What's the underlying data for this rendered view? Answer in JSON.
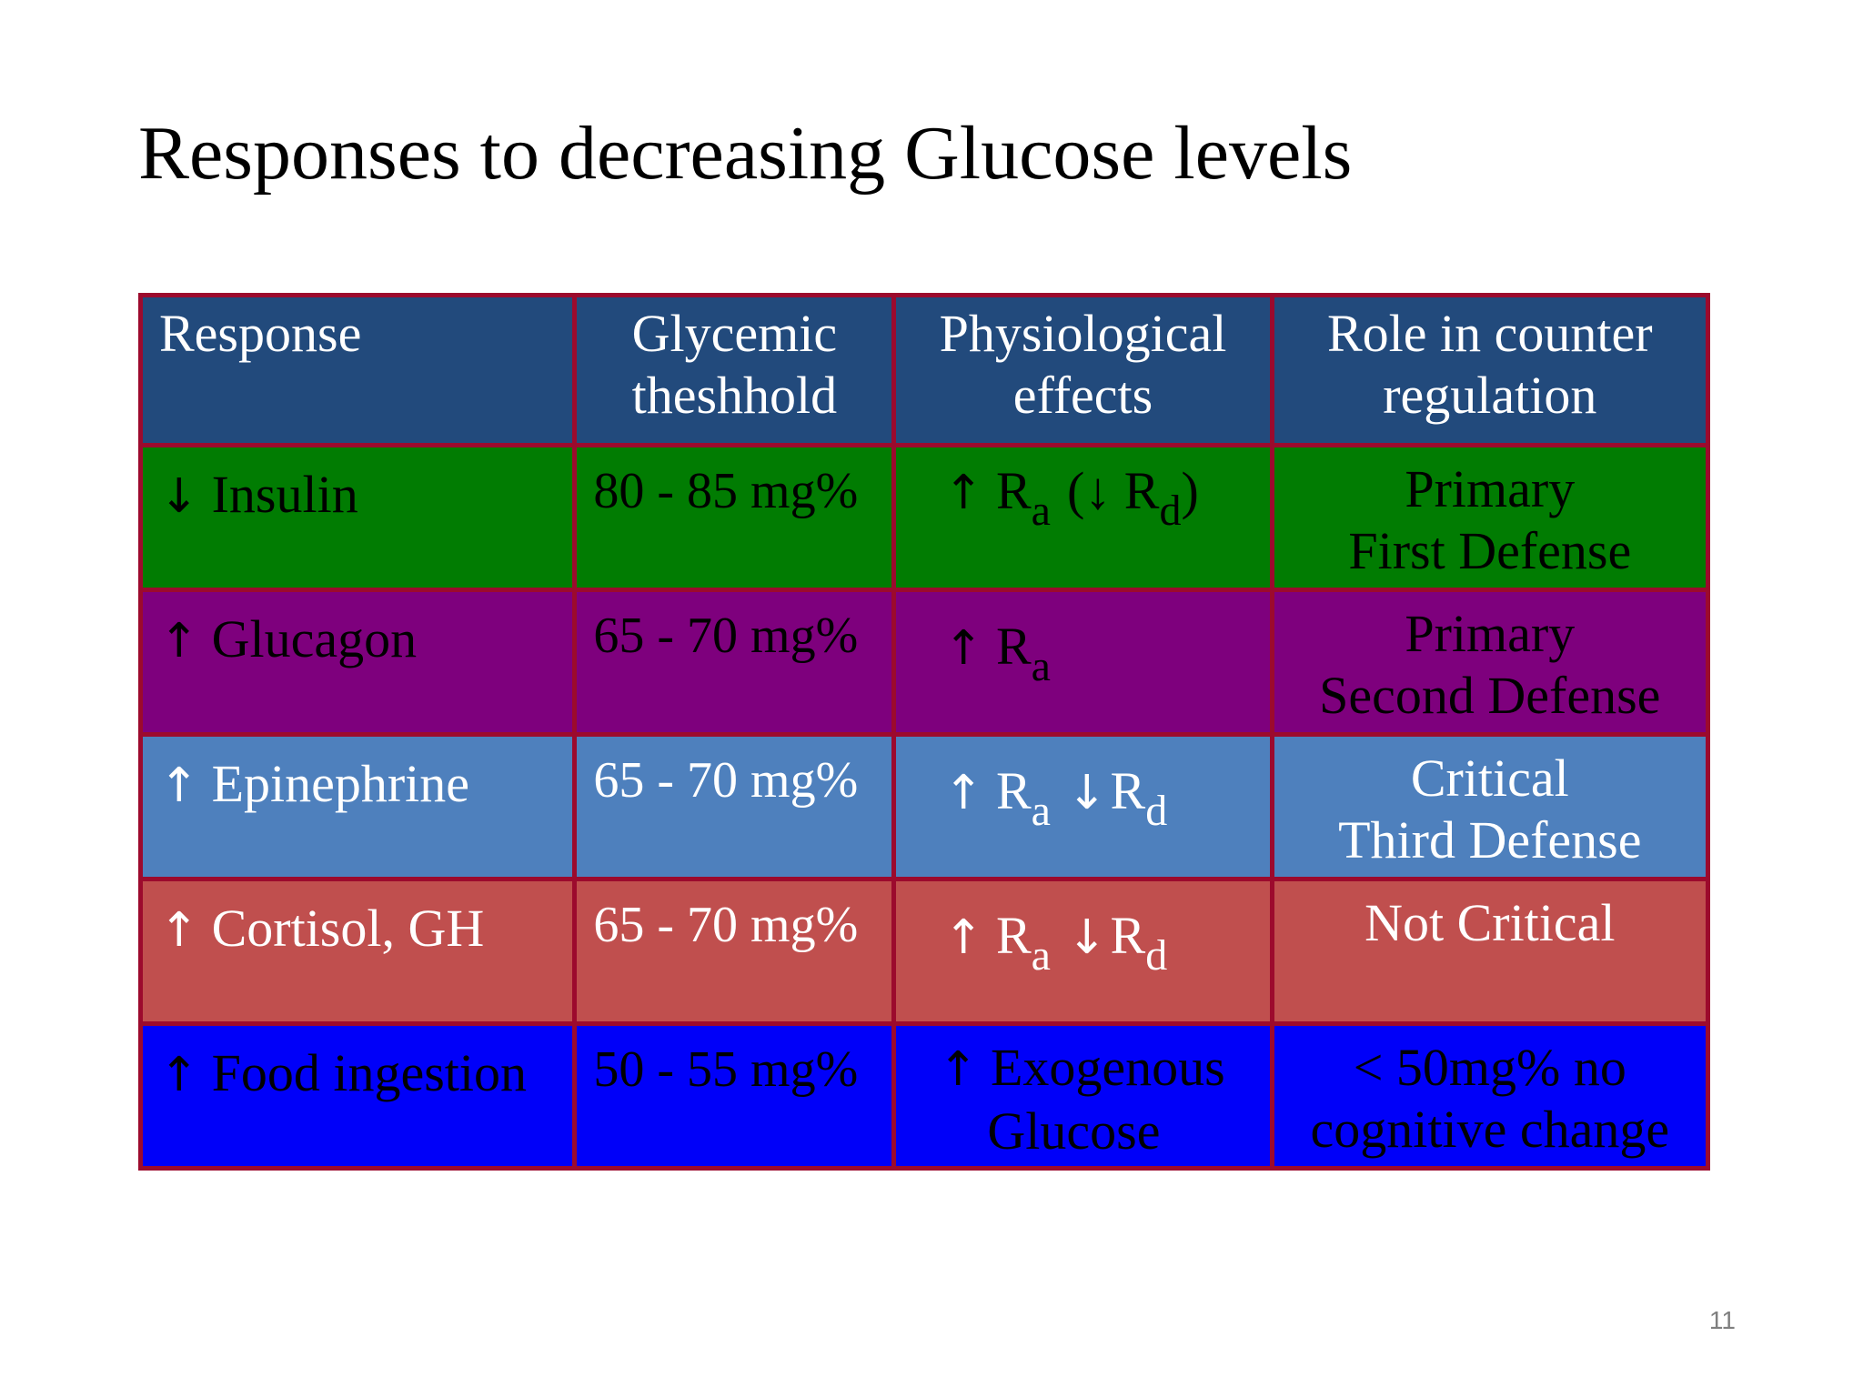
{
  "title": "Responses to decreasing Glucose levels",
  "page_number": "11",
  "colors": {
    "border": "#9c0a2d",
    "header_bg": "#224a7c",
    "insulin_bg": "#017c02",
    "glucagon_bg": "#7e007d",
    "epinephrine_bg": "#4e80bd",
    "cortisol_bg": "#c04f4e",
    "food_bg": "#0000f9"
  },
  "table": {
    "headers": {
      "response": "Response",
      "threshold": [
        "Glycemic",
        "theshhold"
      ],
      "effects": [
        "Physiological",
        "effects"
      ],
      "role": [
        "Role in counter",
        "regulation"
      ]
    },
    "rows": [
      {
        "key": "insulin",
        "arrow": "↓",
        "response": "Insulin",
        "threshold": "80 - 85 mg%",
        "effect": {
          "arrow": "↑",
          "r1": "R",
          "s1": "a",
          "paren_open": "(↓",
          "r2": "R",
          "s2": "d",
          "paren_close": ")"
        },
        "role": [
          "Primary",
          "First Defense"
        ]
      },
      {
        "key": "glucagon",
        "arrow": "↑",
        "response": "Glucagon",
        "threshold": "65 - 70 mg%",
        "effect": {
          "arrow": "↑",
          "r1": "R",
          "s1": "a"
        },
        "role": [
          "Primary",
          "Second Defense"
        ]
      },
      {
        "key": "epinephrine",
        "arrow": "↑",
        "response": "Epinephrine",
        "threshold": "65 - 70 mg%",
        "effect": {
          "arrow": "↑",
          "r1": "R",
          "s1": "a",
          "arrow2": "↓",
          "r2": "R",
          "s2": "d"
        },
        "role": [
          "Critical",
          "Third Defense"
        ]
      },
      {
        "key": "cortisol",
        "arrow": "↑",
        "response": "Cortisol, GH",
        "threshold": "65 - 70 mg%",
        "effect": {
          "arrow": "↑",
          "r1": "R",
          "s1": "a",
          "arrow2": "↓",
          "r2": "R",
          "s2": "d"
        },
        "role": [
          "Not Critical"
        ]
      },
      {
        "key": "food",
        "arrow": "↑",
        "response": "Food ingestion",
        "threshold": "50 - 55 mg%",
        "effect": {
          "arrow": "↑",
          "line1": "Exogenous",
          "line2": "Glucose"
        },
        "role": [
          "< 50mg% no",
          "cognitive change"
        ]
      }
    ]
  }
}
